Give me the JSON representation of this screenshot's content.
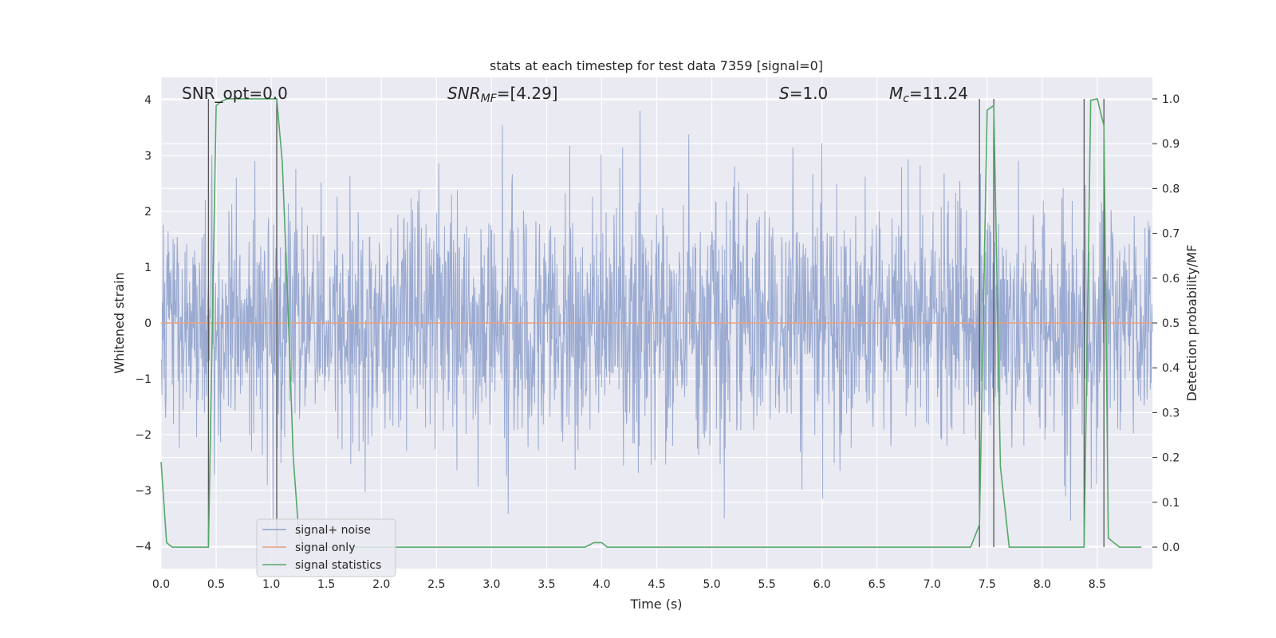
{
  "chart_data": {
    "type": "line",
    "title": "stats at each timestep for test data 7359 [signal=0]",
    "xlabel": "Time (s)",
    "ylabel": "Whitened strain",
    "y2label": "Detection probability/MF",
    "xlim": [
      0,
      9.0
    ],
    "ylim": [
      -4.4,
      4.4
    ],
    "y2lim": [
      -0.048,
      1.048
    ],
    "grid": true,
    "legend_position": "lower-left",
    "x_ticks": [
      "0.0",
      "0.5",
      "1.0",
      "1.5",
      "2.0",
      "2.5",
      "3.0",
      "3.5",
      "4.0",
      "4.5",
      "5.0",
      "5.5",
      "6.0",
      "6.5",
      "7.0",
      "7.5",
      "8.0",
      "8.5"
    ],
    "y_ticks": [
      "−4",
      "−3",
      "−2",
      "−1",
      "0",
      "1",
      "2",
      "3",
      "4"
    ],
    "y2_ticks": [
      "0.0",
      "0.1",
      "0.2",
      "0.3",
      "0.4",
      "0.5",
      "0.6",
      "0.7",
      "0.8",
      "0.9",
      "1.0"
    ],
    "annotations": {
      "snr_opt": "SNR_opt=0.0",
      "snr_mf_base": "SNR",
      "snr_mf_sub": "MF",
      "snr_mf_value": "=[4.29]",
      "s_var": "S",
      "s_value": "=1.0",
      "mc_base": "M",
      "mc_sub": "c",
      "mc_value": "=11.24"
    },
    "series": [
      {
        "name": "signal+ noise",
        "color": "#8c9fcb",
        "note": "whitened noise time series, ~2 units amplitude, peaks near ±3.7"
      },
      {
        "name": "signal only",
        "color": "#e8a07f",
        "x": [
          0,
          9.0
        ],
        "y": [
          0,
          0
        ]
      },
      {
        "name": "signal statistics",
        "color": "#55a868",
        "x": [
          0.0,
          0.05,
          0.1,
          0.15,
          0.2,
          0.25,
          0.3,
          0.35,
          0.4,
          0.43,
          0.5,
          0.55,
          0.6,
          0.7,
          0.8,
          0.9,
          1.0,
          1.05,
          1.1,
          1.15,
          1.2,
          1.25,
          1.3,
          1.5,
          2.0,
          2.5,
          3.0,
          3.5,
          3.85,
          3.93,
          4.0,
          4.05,
          4.1,
          4.5,
          5.0,
          5.5,
          6.0,
          6.5,
          7.0,
          7.35,
          7.43,
          7.5,
          7.56,
          7.62,
          7.7,
          7.8,
          8.0,
          8.2,
          8.35,
          8.38,
          8.44,
          8.5,
          8.56,
          8.6,
          8.7,
          8.9
        ],
        "y": [
          0.19,
          0.01,
          0.0,
          0.0,
          0.0,
          0.0,
          0.0,
          0.0,
          0.0,
          0.0,
          0.985,
          0.995,
          1.0,
          1.0,
          1.0,
          1.0,
          1.0,
          1.0,
          0.86,
          0.55,
          0.2,
          0.03,
          0.0,
          0.0,
          0.0,
          0.0,
          0.0,
          0.0,
          0.0,
          0.01,
          0.01,
          0.0,
          0.0,
          0.0,
          0.0,
          0.0,
          0.0,
          0.0,
          0.0,
          0.0,
          0.05,
          0.975,
          0.985,
          0.18,
          0.0,
          0.0,
          0.0,
          0.0,
          0.0,
          0.0,
          0.997,
          1.0,
          0.94,
          0.02,
          0.0,
          0.0
        ]
      }
    ],
    "vertical_markers_x": [
      0.43,
      1.05,
      7.43,
      7.56,
      8.38,
      8.56
    ]
  }
}
